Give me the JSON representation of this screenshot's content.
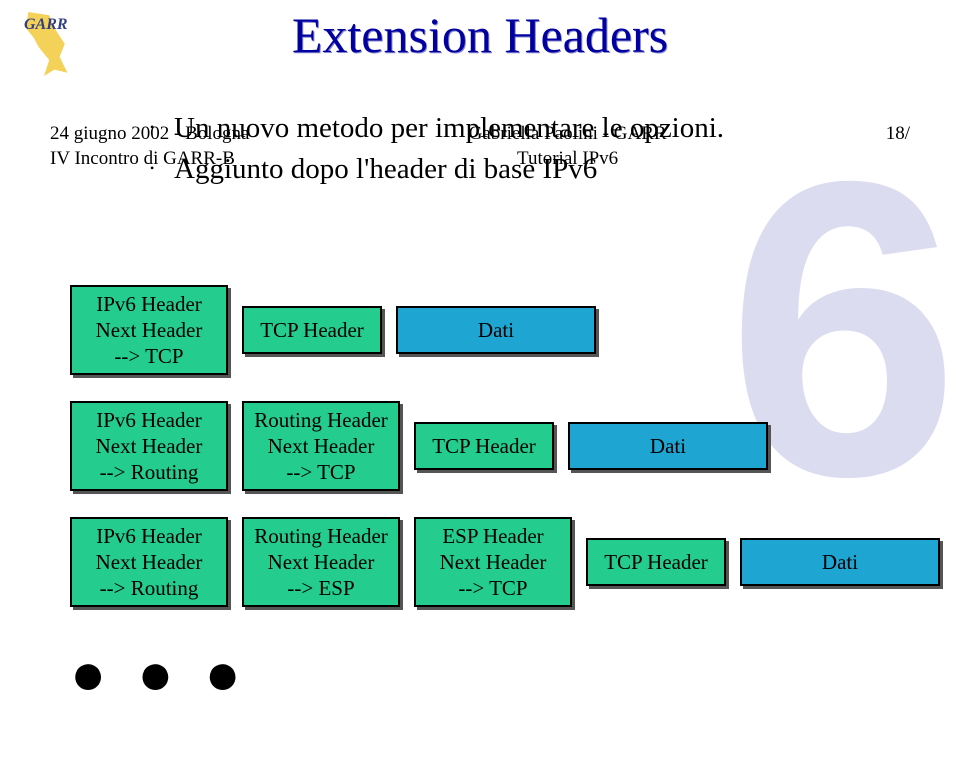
{
  "title": "Extension Headers",
  "bullets": [
    "Un nuovo metodo per implementare le opzioni.",
    "Aggiunto dopo l'header di base IPv6"
  ],
  "colors": {
    "title": "#0000a0",
    "header_box": "#24cd8e",
    "tcp_box": "#24cd8e",
    "data_box": "#1ea5d1",
    "watermark": "#dcdcf0",
    "border": "#000000",
    "background": "#ffffff"
  },
  "logo_label": "GARR",
  "rows": [
    {
      "cells": [
        {
          "lines": [
            "IPv6 Header",
            "Next Header",
            "--> TCP"
          ],
          "kind": "header",
          "w": "wA",
          "h": "h3"
        },
        {
          "lines": [
            "TCP Header"
          ],
          "kind": "tcp",
          "w": "wT",
          "h": "h1"
        },
        {
          "lines": [
            "Dati"
          ],
          "kind": "data",
          "w": "wD",
          "h": "h1"
        }
      ]
    },
    {
      "cells": [
        {
          "lines": [
            "IPv6 Header",
            "Next Header",
            "--> Routing"
          ],
          "kind": "header",
          "w": "wA",
          "h": "h3"
        },
        {
          "lines": [
            "Routing Header",
            "Next Header",
            "--> TCP"
          ],
          "kind": "header",
          "w": "wA",
          "h": "h3"
        },
        {
          "lines": [
            "TCP Header"
          ],
          "kind": "tcp",
          "w": "wT",
          "h": "h1"
        },
        {
          "lines": [
            "Dati"
          ],
          "kind": "data",
          "w": "wD",
          "h": "h1"
        }
      ]
    },
    {
      "cells": [
        {
          "lines": [
            "IPv6 Header",
            "Next Header",
            "--> Routing"
          ],
          "kind": "header",
          "w": "wA",
          "h": "h3"
        },
        {
          "lines": [
            "Routing Header",
            "Next Header",
            "--> ESP"
          ],
          "kind": "header",
          "w": "wA",
          "h": "h3"
        },
        {
          "lines": [
            "ESP Header",
            "Next Header",
            "--> TCP"
          ],
          "kind": "header",
          "w": "wA",
          "h": "h3"
        },
        {
          "lines": [
            "TCP Header"
          ],
          "kind": "tcp",
          "w": "wT",
          "h": "h1"
        },
        {
          "lines": [
            "Dati"
          ],
          "kind": "data",
          "w": "wD",
          "h": "h1"
        }
      ]
    }
  ],
  "ellipsis": "● ● ●",
  "footer": {
    "left": [
      "24 giugno 2002 - Bologna",
      "IV Incontro di GARR-B"
    ],
    "center": [
      "Gabriella Paolini - GARR",
      "Tutorial IPv6"
    ],
    "right": [
      "18/"
    ]
  },
  "watermark_text": "6"
}
